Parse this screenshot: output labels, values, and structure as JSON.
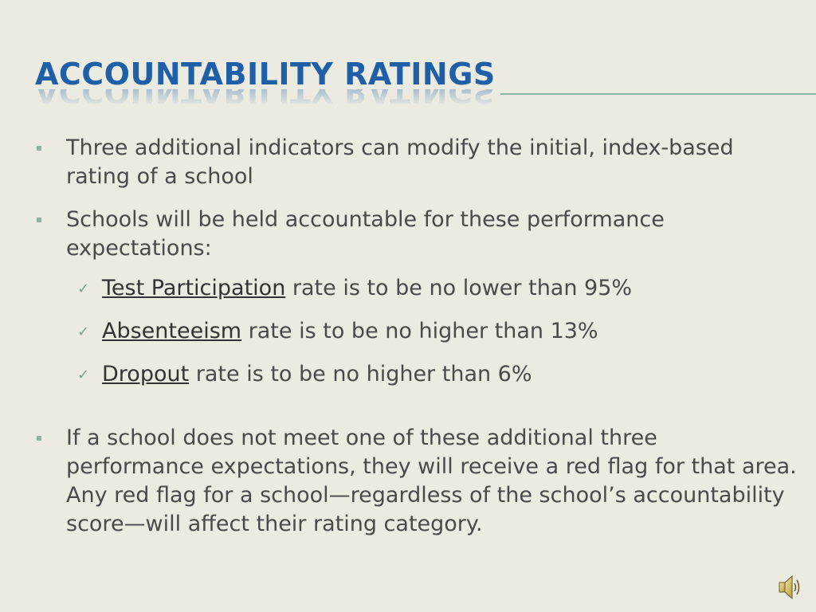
{
  "slide": {
    "title": "Accountability Ratings",
    "bullets": [
      "Three additional indicators can modify the initial, index-based rating of a school",
      "Schools will be held accountable for these performance expectations:",
      "If a school does not meet one of these additional three performance expectations, they will receive a red flag for that area. Any red flag for a school—regardless of the school’s accountability score—will affect their rating category."
    ],
    "sub_bullets": [
      {
        "term": "Test Participation",
        "text": " rate is to be no lower than 95%"
      },
      {
        "term": "Absenteeism",
        "text": " rate is to be no higher than 13%"
      },
      {
        "term": "Dropout",
        "text": " rate is to be no higher than 6%"
      }
    ],
    "check_glyph": "✓",
    "colors": {
      "title": "#1f5fa8",
      "accent": "#8fb3a3",
      "background": "#ebebe1",
      "text": "#4a4a4a"
    },
    "icons": {
      "audio": "speaker-icon"
    }
  }
}
